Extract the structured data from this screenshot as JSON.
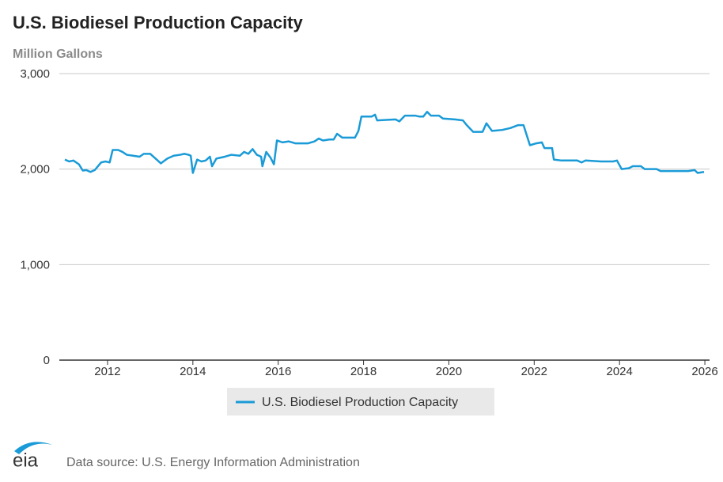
{
  "chart_data": {
    "type": "line",
    "title": "U.S. Biodiesel Production Capacity",
    "subtitle": "Million Gallons",
    "source": "Data source: U.S. Energy Information Administration",
    "logo_text": "eia",
    "x": [
      2011.0,
      2011.1,
      2011.2,
      2011.33,
      2011.42,
      2011.5,
      2011.6,
      2011.7,
      2011.85,
      2011.95,
      2012.05,
      2012.12,
      2012.25,
      2012.35,
      2012.45,
      2012.6,
      2012.75,
      2012.85,
      2013.0,
      2013.15,
      2013.25,
      2013.4,
      2013.55,
      2013.7,
      2013.8,
      2013.9,
      2013.95,
      2014.0,
      2014.1,
      2014.2,
      2014.3,
      2014.4,
      2014.45,
      2014.55,
      2014.75,
      2014.9,
      2015.1,
      2015.2,
      2015.3,
      2015.4,
      2015.5,
      2015.6,
      2015.63,
      2015.72,
      2015.82,
      2015.9,
      2015.97,
      2016.1,
      2016.25,
      2016.4,
      2016.7,
      2016.85,
      2016.95,
      2017.05,
      2017.2,
      2017.3,
      2017.38,
      2017.5,
      2017.8,
      2017.88,
      2017.95,
      2018.19,
      2018.27,
      2018.32,
      2018.75,
      2018.84,
      2018.97,
      2019.21,
      2019.31,
      2019.4,
      2019.49,
      2019.58,
      2019.77,
      2019.86,
      2020.14,
      2020.33,
      2020.42,
      2020.57,
      2020.79,
      2020.88,
      2021.01,
      2021.25,
      2021.44,
      2021.62,
      2021.75,
      2021.9,
      2022.05,
      2022.18,
      2022.24,
      2022.42,
      2022.46,
      2022.64,
      2023.01,
      2023.11,
      2023.2,
      2023.57,
      2023.85,
      2023.94,
      2024.05,
      2024.22,
      2024.31,
      2024.5,
      2024.59,
      2024.87,
      2024.96,
      2025.42,
      2025.61,
      2025.76,
      2025.83,
      2025.98
    ],
    "series": [
      {
        "name": "U.S. Biodiesel Production Capacity",
        "color": "#1a9bd7",
        "values": [
          2100,
          2080,
          2090,
          2050,
          1985,
          1990,
          1970,
          1990,
          2070,
          2080,
          2070,
          2200,
          2200,
          2180,
          2150,
          2140,
          2130,
          2160,
          2160,
          2100,
          2060,
          2110,
          2140,
          2150,
          2160,
          2150,
          2140,
          1960,
          2100,
          2080,
          2090,
          2130,
          2030,
          2110,
          2130,
          2150,
          2140,
          2180,
          2160,
          2210,
          2150,
          2130,
          2030,
          2180,
          2120,
          2050,
          2300,
          2280,
          2290,
          2270,
          2270,
          2290,
          2320,
          2300,
          2310,
          2310,
          2370,
          2330,
          2330,
          2400,
          2550,
          2550,
          2570,
          2510,
          2520,
          2500,
          2560,
          2560,
          2550,
          2550,
          2600,
          2560,
          2560,
          2530,
          2520,
          2510,
          2460,
          2390,
          2390,
          2480,
          2400,
          2410,
          2430,
          2460,
          2460,
          2250,
          2270,
          2280,
          2220,
          2220,
          2100,
          2090,
          2090,
          2070,
          2090,
          2080,
          2080,
          2090,
          2000,
          2010,
          2030,
          2030,
          2000,
          2000,
          1980,
          1980,
          1980,
          1990,
          1960,
          1970
        ]
      }
    ],
    "xlim": [
      2010.87,
      2026.11
    ],
    "xticks": [
      2012,
      2014,
      2016,
      2018,
      2020,
      2022,
      2024,
      2026
    ],
    "ylim": [
      0,
      3000
    ],
    "yticks": [
      0,
      {
        "value": 1000,
        "label": "1,000"
      },
      {
        "value": 2000,
        "label": "2,000"
      },
      {
        "value": 3000,
        "label": "3,000"
      }
    ],
    "grid": true
  }
}
